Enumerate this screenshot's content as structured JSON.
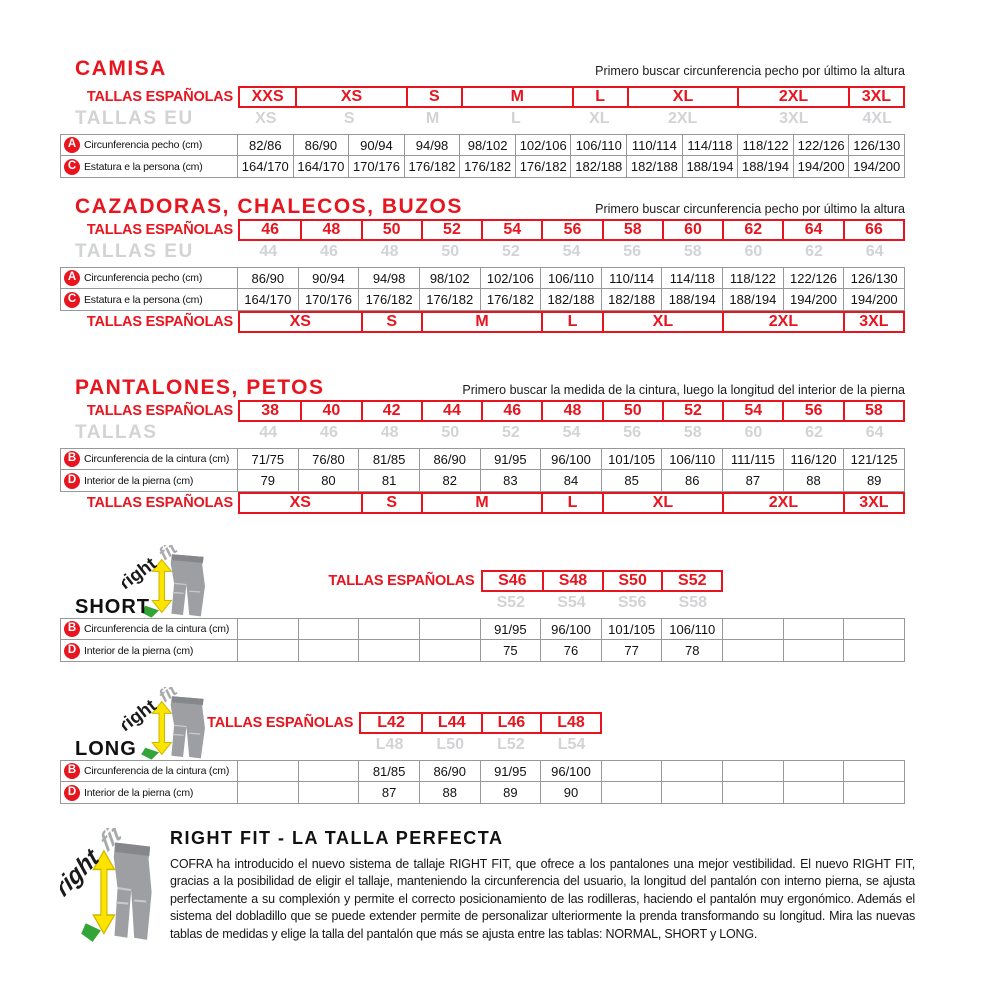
{
  "logo": {
    "right": "right",
    "fit": "fit"
  },
  "colors": {
    "red": "#e8141e",
    "grey_sizes": "#d2d3d5",
    "cell_border": "#97989a",
    "text": "#161616"
  },
  "sections": {
    "camisa": {
      "title": "CAMISA",
      "note": "Primero buscar circunferencia pecho por último la altura",
      "es_label": "TALLAS ESPAÑOLAS",
      "eu_label": "TALLAS EU",
      "es_sizes": [
        {
          "label": "XXS",
          "span": 1
        },
        {
          "label": "XS",
          "span": 2
        },
        {
          "label": "S",
          "span": 1
        },
        {
          "label": "M",
          "span": 2
        },
        {
          "label": "L",
          "span": 1
        },
        {
          "label": "XL",
          "span": 2
        },
        {
          "label": "2XL",
          "span": 2
        },
        {
          "label": "3XL",
          "span": 1
        }
      ],
      "eu_sizes": [
        {
          "label": "XS",
          "span": 1
        },
        {
          "label": "S",
          "span": 2
        },
        {
          "label": "M",
          "span": 1
        },
        {
          "label": "L",
          "span": 2
        },
        {
          "label": "XL",
          "span": 1
        },
        {
          "label": "2XL",
          "span": 2
        },
        {
          "label": "3XL",
          "span": 2
        },
        {
          "label": "4XL",
          "span": 1
        }
      ],
      "rows": [
        {
          "key": "A",
          "label": "Circunferencia pecho (cm)",
          "values": [
            "82/86",
            "86/90",
            "90/94",
            "94/98",
            "98/102",
            "102/106",
            "106/110",
            "110/114",
            "114/118",
            "118/122",
            "122/126",
            "126/130"
          ]
        },
        {
          "key": "C",
          "label": "Estatura e la persona (cm)",
          "values": [
            "164/170",
            "164/170",
            "170/176",
            "176/182",
            "176/182",
            "176/182",
            "182/188",
            "182/188",
            "188/194",
            "188/194",
            "194/200",
            "194/200"
          ]
        }
      ]
    },
    "cazadoras": {
      "title": "CAZADORAS, CHALECOS, BUZOS",
      "note": "Primero buscar circunferencia pecho por último la altura",
      "es_label": "TALLAS ESPAÑOLAS",
      "eu_label": "TALLAS EU",
      "es_sizes": [
        "46",
        "48",
        "50",
        "52",
        "54",
        "56",
        "58",
        "60",
        "62",
        "64",
        "66"
      ],
      "eu_sizes": [
        "44",
        "46",
        "48",
        "50",
        "52",
        "54",
        "56",
        "58",
        "60",
        "62",
        "64"
      ],
      "rows": [
        {
          "key": "A",
          "label": "Circunferencia pecho (cm)",
          "values": [
            "86/90",
            "90/94",
            "94/98",
            "98/102",
            "102/106",
            "106/110",
            "110/114",
            "114/118",
            "118/122",
            "122/126",
            "126/130"
          ]
        },
        {
          "key": "C",
          "label": "Estatura e la persona (cm)",
          "values": [
            "164/170",
            "170/176",
            "176/182",
            "176/182",
            "176/182",
            "182/188",
            "182/188",
            "188/194",
            "188/194",
            "194/200",
            "194/200"
          ]
        }
      ],
      "letter_label": "TALLAS ESPAÑOLAS",
      "letter_sizes": [
        {
          "label": "XS",
          "span": 2
        },
        {
          "label": "S",
          "span": 1
        },
        {
          "label": "M",
          "span": 2
        },
        {
          "label": "L",
          "span": 1
        },
        {
          "label": "XL",
          "span": 2
        },
        {
          "label": "2XL",
          "span": 2
        },
        {
          "label": "3XL",
          "span": 1
        }
      ]
    },
    "pantalones": {
      "title": "PANTALONES, PETOS",
      "note": "Primero buscar la medida de la cintura, luego la longitud del interior de la pierna",
      "es_label": "TALLAS ESPAÑOLAS",
      "eu_label": "TALLAS",
      "es_sizes": [
        "38",
        "40",
        "42",
        "44",
        "46",
        "48",
        "50",
        "52",
        "54",
        "56",
        "58"
      ],
      "eu_sizes": [
        "44",
        "46",
        "48",
        "50",
        "52",
        "54",
        "56",
        "58",
        "60",
        "62",
        "64"
      ],
      "rows": [
        {
          "key": "B",
          "label": "Circunferencia de la cintura (cm)",
          "values": [
            "71/75",
            "76/80",
            "81/85",
            "86/90",
            "91/95",
            "96/100",
            "101/105",
            "106/110",
            "111/115",
            "116/120",
            "121/125"
          ]
        },
        {
          "key": "D",
          "label": "Interior de la pierna (cm)",
          "values": [
            "79",
            "80",
            "81",
            "82",
            "83",
            "84",
            "85",
            "86",
            "87",
            "88",
            "89"
          ]
        }
      ],
      "letter_label": "TALLAS ESPAÑOLAS",
      "letter_sizes": [
        {
          "label": "XS",
          "span": 2
        },
        {
          "label": "S",
          "span": 1
        },
        {
          "label": "M",
          "span": 2
        },
        {
          "label": "L",
          "span": 1
        },
        {
          "label": "XL",
          "span": 2
        },
        {
          "label": "2XL",
          "span": 2
        },
        {
          "label": "3XL",
          "span": 1
        }
      ]
    },
    "short": {
      "name": "SHORT",
      "es_label": "TALLAS ESPAÑOLAS",
      "es_sizes": [
        "S46",
        "S48",
        "S50",
        "S52"
      ],
      "eu_sizes": [
        "S52",
        "S54",
        "S56",
        "S58"
      ],
      "rows": [
        {
          "key": "B",
          "label": "Circunferencia de la cintura (cm)",
          "values": [
            "",
            "",
            "",
            "",
            "91/95",
            "96/100",
            "101/105",
            "106/110",
            "",
            "",
            ""
          ]
        },
        {
          "key": "D",
          "label": "Interior de la pierna (cm)",
          "values": [
            "",
            "",
            "",
            "",
            "75",
            "76",
            "77",
            "78",
            "",
            "",
            ""
          ]
        }
      ]
    },
    "long": {
      "name": "LONG",
      "es_label": "TALLAS ESPAÑOLAS",
      "es_sizes": [
        "L42",
        "L44",
        "L46",
        "L48"
      ],
      "eu_sizes": [
        "L48",
        "L50",
        "L52",
        "L54"
      ],
      "rows": [
        {
          "key": "B",
          "label": "Circunferencia de la cintura (cm)",
          "values": [
            "",
            "",
            "81/85",
            "86/90",
            "91/95",
            "96/100",
            "",
            "",
            "",
            "",
            ""
          ]
        },
        {
          "key": "D",
          "label": "Interior de la pierna (cm)",
          "values": [
            "",
            "",
            "87",
            "88",
            "89",
            "90",
            "",
            "",
            "",
            "",
            ""
          ]
        }
      ]
    },
    "rightfit": {
      "title": "RIGHT FIT - LA TALLA PERFECTA",
      "body": "COFRA ha introducido el nuevo sistema de tallaje RIGHT FIT, que ofrece a los pantalones una mejor vestibilidad. El nuevo RIGHT FIT, gracias a la posibilidad de eligir el tallaje, manteniendo la circunferencia del usuario, la longitud del pantalón con interno pierna, se ajusta perfectamente a su complexión y permite el correcto posicionamiento de las rodilleras, haciendo el pantalón muy ergonómico. Además el sistema del dobladillo que se puede extender permite de personalizar ulteriormente la prenda transformando su longitud. Mira las nuevas tablas de medidas y elige la talla del pantalón que más se ajusta entre las tablas: NORMAL, SHORT y LONG."
    }
  }
}
